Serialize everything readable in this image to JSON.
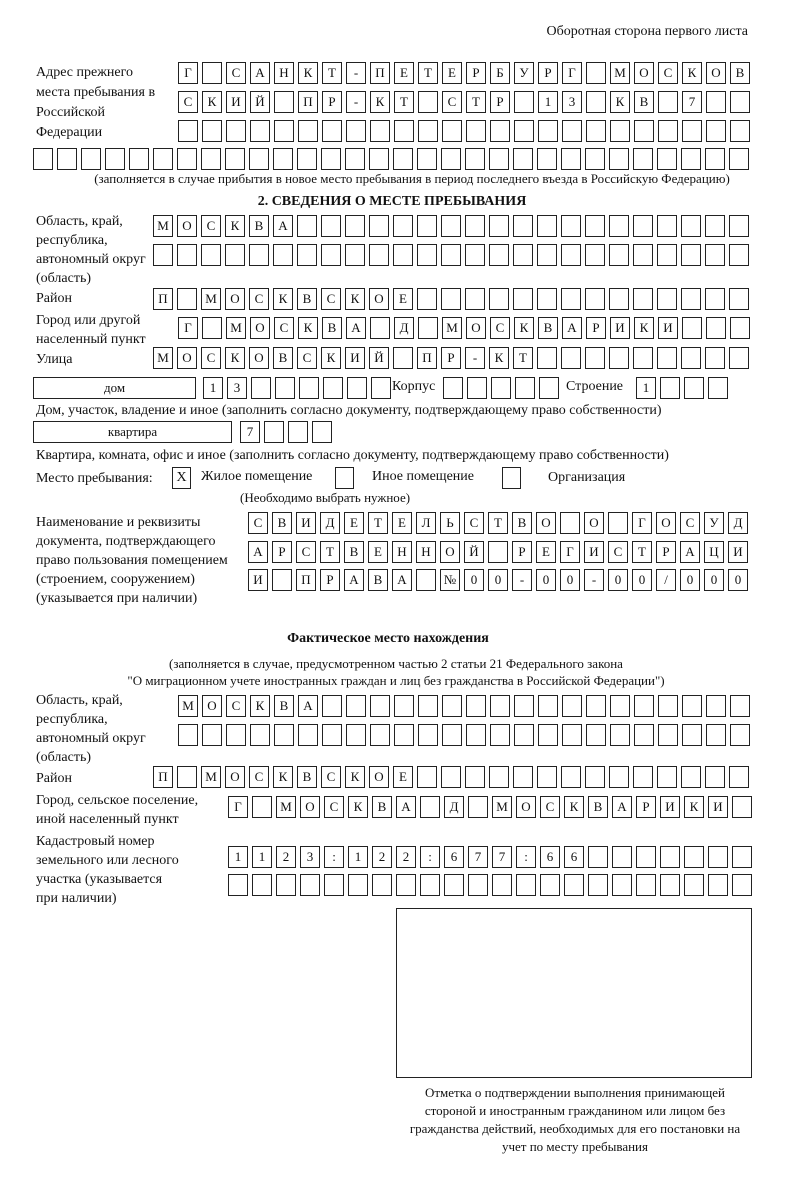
{
  "header": {
    "page_side": "Оборотная сторона первого листа"
  },
  "previous_address": {
    "label": "Адрес прежнего места пребывания в Российской Федерации",
    "rows": [
      [
        "Г",
        "",
        "С",
        "А",
        "Н",
        "К",
        "Т",
        "-",
        "П",
        "Е",
        "Т",
        "Е",
        "Р",
        "Б",
        "У",
        "Р",
        "Г",
        "",
        "М",
        "О",
        "С",
        "К",
        "О",
        "В"
      ],
      [
        "С",
        "К",
        "И",
        "Й",
        "",
        "П",
        "Р",
        "-",
        "К",
        "Т",
        "",
        "С",
        "Т",
        "Р",
        "",
        "1",
        "3",
        "",
        "К",
        "В",
        "",
        "7",
        "",
        ""
      ],
      [
        "",
        "",
        "",
        "",
        "",
        "",
        "",
        "",
        "",
        "",
        "",
        "",
        "",
        "",
        "",
        "",
        "",
        "",
        "",
        "",
        "",
        "",
        "",
        ""
      ],
      [
        "",
        "",
        "",
        "",
        "",
        "",
        "",
        "",
        "",
        "",
        "",
        "",
        "",
        "",
        "",
        "",
        "",
        "",
        "",
        "",
        "",
        "",
        "",
        "",
        "",
        "",
        "",
        "",
        "",
        ""
      ]
    ],
    "note": "(заполняется в случае прибытия в новое место пребывания в период последнего въезда в Российскую Федерацию)"
  },
  "section2": {
    "title": "2. СВЕДЕНИЯ О МЕСТЕ ПРЕБЫВАНИЯ",
    "region_label": "Область, край, республика, автономный округ (область)",
    "region_rows": [
      [
        "М",
        "О",
        "С",
        "К",
        "В",
        "А",
        "",
        "",
        "",
        "",
        "",
        "",
        "",
        "",
        "",
        "",
        "",
        "",
        "",
        "",
        "",
        "",
        "",
        "",
        ""
      ],
      [
        "",
        "",
        "",
        "",
        "",
        "",
        "",
        "",
        "",
        "",
        "",
        "",
        "",
        "",
        "",
        "",
        "",
        "",
        "",
        "",
        "",
        "",
        "",
        "",
        ""
      ]
    ],
    "district_label": "Район",
    "district": [
      "П",
      "",
      "М",
      "О",
      "С",
      "К",
      "В",
      "С",
      "К",
      "О",
      "Е",
      "",
      "",
      "",
      "",
      "",
      "",
      "",
      "",
      "",
      "",
      "",
      "",
      "",
      ""
    ],
    "city_label": "Город или другой населенный пункт",
    "city": [
      "Г",
      "",
      "М",
      "О",
      "С",
      "К",
      "В",
      "А",
      "",
      "Д",
      "",
      "М",
      "О",
      "С",
      "К",
      "В",
      "А",
      "Р",
      "И",
      "К",
      "И",
      "",
      "",
      ""
    ],
    "street_label": "Улица",
    "street": [
      "М",
      "О",
      "С",
      "К",
      "О",
      "В",
      "С",
      "К",
      "И",
      "Й",
      "",
      "П",
      "Р",
      "-",
      "К",
      "Т",
      "",
      "",
      "",
      "",
      "",
      "",
      "",
      "",
      ""
    ],
    "house_type": "дом",
    "house": [
      "1",
      "3",
      "",
      "",
      "",
      "",
      "",
      ""
    ],
    "building_label": "Корпус",
    "building": [
      "",
      "",
      "",
      "",
      ""
    ],
    "structure_label": "Строение",
    "structure": [
      "1",
      "",
      "",
      ""
    ],
    "house_note": "Дом, участок, владение и иное (заполнить согласно документу, подтверждающему право собственности)",
    "flat_type": "квартира",
    "flat": [
      "7",
      "",
      "",
      ""
    ],
    "flat_note": "Квартира, комната, офис и иное (заполнить согласно документу, подтверждающему право собственности)",
    "stay_place_label": "Место пребывания:",
    "options": [
      {
        "label": "Жилое помещение",
        "mark": "X"
      },
      {
        "label": "Иное помещение",
        "mark": ""
      },
      {
        "label": "Организация",
        "mark": ""
      }
    ],
    "choose_note": "(Необходимо выбрать нужное)",
    "document_label": "Наименование и реквизиты документа, подтверждающего право пользования помещением (строением, сооружением) (указывается при наличии)",
    "document_rows": [
      [
        "С",
        "В",
        "И",
        "Д",
        "Е",
        "Т",
        "Е",
        "Л",
        "Ь",
        "С",
        "Т",
        "В",
        "О",
        "",
        "О",
        "",
        "Г",
        "О",
        "С",
        "У",
        "Д"
      ],
      [
        "А",
        "Р",
        "С",
        "Т",
        "В",
        "Е",
        "Н",
        "Н",
        "О",
        "Й",
        "",
        "Р",
        "Е",
        "Г",
        "И",
        "С",
        "Т",
        "Р",
        "А",
        "Ц",
        "И"
      ],
      [
        "И",
        "",
        "П",
        "Р",
        "А",
        "В",
        "А",
        "",
        "№",
        "0",
        "0",
        "-",
        "0",
        "0",
        "-",
        "0",
        "0",
        "/",
        "0",
        "0",
        "0"
      ]
    ]
  },
  "actual": {
    "title": "Фактическое место нахождения",
    "note1": "(заполняется в случае, предусмотренном частью 2 статьи 21 Федерального закона",
    "note2": "\"О миграционном учете иностранных граждан и лиц без гражданства в Российской Федерации\")",
    "region_label": "Область, край, республика, автономный округ (область)",
    "region_rows": [
      [
        "М",
        "О",
        "С",
        "К",
        "В",
        "А",
        "",
        "",
        "",
        "",
        "",
        "",
        "",
        "",
        "",
        "",
        "",
        "",
        "",
        "",
        "",
        "",
        "",
        ""
      ],
      [
        "",
        "",
        "",
        "",
        "",
        "",
        "",
        "",
        "",
        "",
        "",
        "",
        "",
        "",
        "",
        "",
        "",
        "",
        "",
        "",
        "",
        "",
        "",
        ""
      ]
    ],
    "district_label": "Район",
    "district": [
      "П",
      "",
      "М",
      "О",
      "С",
      "К",
      "В",
      "С",
      "К",
      "О",
      "Е",
      "",
      "",
      "",
      "",
      "",
      "",
      "",
      "",
      "",
      "",
      "",
      "",
      "",
      ""
    ],
    "city_label": "Город, сельское поселение, иной населенный пункт",
    "city": [
      "Г",
      "",
      "М",
      "О",
      "С",
      "К",
      "В",
      "А",
      "",
      "Д",
      "",
      "М",
      "О",
      "С",
      "К",
      "В",
      "А",
      "Р",
      "И",
      "К",
      "И",
      ""
    ],
    "cadastral_label": "Кадастровый номер земельного или лесного участка (указывается при наличии)",
    "cadastral_rows": [
      [
        "1",
        "1",
        "2",
        "3",
        ":",
        "1",
        "2",
        "2",
        ":",
        "6",
        "7",
        "7",
        ":",
        "6",
        "6",
        "",
        "",
        "",
        "",
        "",
        "",
        ""
      ],
      [
        "",
        "",
        "",
        "",
        "",
        "",
        "",
        "",
        "",
        "",
        "",
        "",
        "",
        "",
        "",
        "",
        "",
        "",
        "",
        "",
        "",
        ""
      ]
    ]
  },
  "stamp_caption": "Отметка о подтверждении выполнения принимающей стороной и иностранным гражданином или лицом без гражданства действий, необходимых для его постановки на учет по месту пребывания"
}
